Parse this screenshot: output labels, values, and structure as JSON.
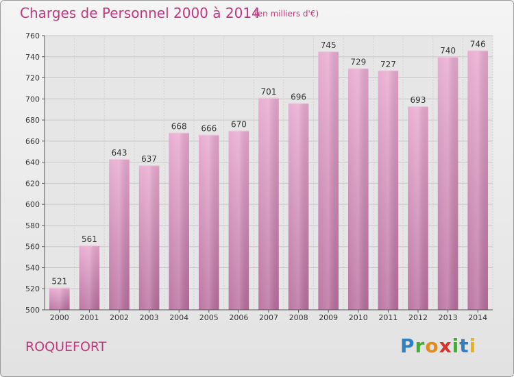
{
  "header": {
    "title": "Charges de Personnel 2000 à 2014",
    "subtitle": "(en milliers d'€)"
  },
  "footer": {
    "city": "ROQUEFORT",
    "brand_letters": [
      {
        "ch": "P",
        "color": "#2f7fc4"
      },
      {
        "ch": "r",
        "color": "#49a83a"
      },
      {
        "ch": "o",
        "color": "#e58a1c"
      },
      {
        "ch": "x",
        "color": "#d6312b"
      },
      {
        "ch": "i",
        "color": "#49a83a"
      },
      {
        "ch": "t",
        "color": "#2f7fc4"
      },
      {
        "ch": "i",
        "color": "#e8b31a"
      }
    ]
  },
  "chart_data": {
    "type": "bar",
    "categories": [
      "2000",
      "2001",
      "2002",
      "2003",
      "2004",
      "2005",
      "2006",
      "2007",
      "2008",
      "2009",
      "2010",
      "2011",
      "2012",
      "2013",
      "2014"
    ],
    "values": [
      521,
      561,
      643,
      637,
      668,
      666,
      670,
      701,
      696,
      745,
      729,
      727,
      693,
      740,
      746
    ],
    "ylim": [
      500,
      760
    ],
    "yticks": [
      500,
      520,
      540,
      560,
      580,
      600,
      620,
      640,
      660,
      680,
      700,
      720,
      740,
      760
    ],
    "grid": true,
    "bar_color": "#d27aaa"
  }
}
